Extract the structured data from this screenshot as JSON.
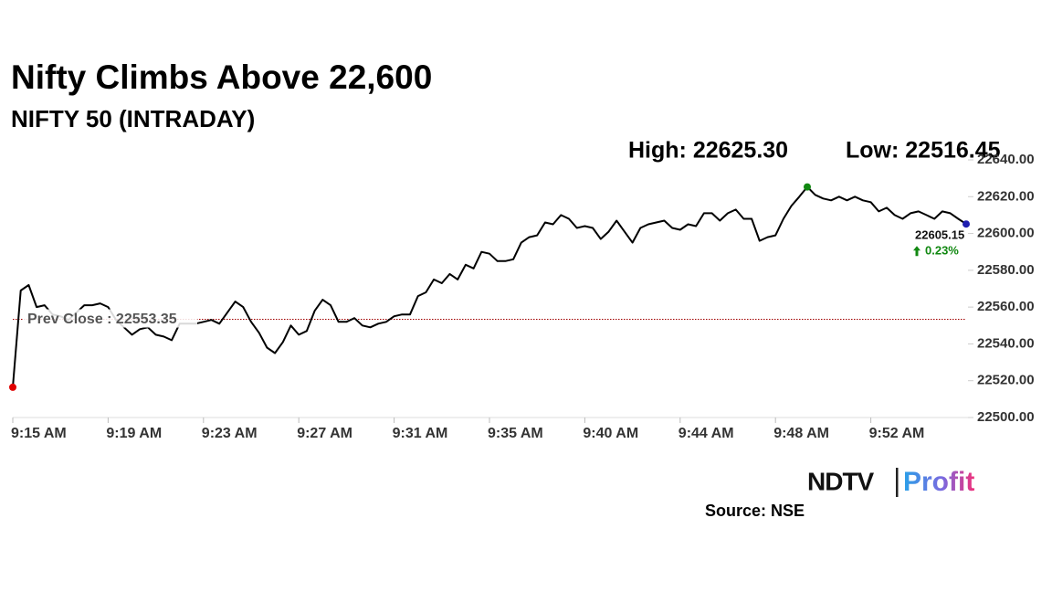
{
  "title": "Nifty Climbs Above 22,600",
  "subtitle": "NIFTY 50 (INTRADAY)",
  "high_label": "High: 22625.30",
  "low_label": "Low: 22516.45",
  "source": "Source: NSE",
  "logo": {
    "left": "NDTV",
    "right": "Profit"
  },
  "chart_data": {
    "type": "line",
    "series": [
      {
        "color": "#000000",
        "values": [
          22516.45,
          22569,
          22572,
          22560,
          22561,
          22556,
          22555,
          22553,
          22557,
          22561,
          22561,
          22562,
          22560,
          22553,
          22549,
          22545,
          22548,
          22549,
          22545,
          22544,
          22542,
          22551,
          22551,
          22551,
          22552,
          22553,
          22551,
          22557,
          22563,
          22560,
          22552,
          22546,
          22538,
          22535,
          22541,
          22550,
          22545,
          22547,
          22558,
          22564,
          22561,
          22552,
          22552,
          22554,
          22550,
          22549,
          22551,
          22552,
          22555,
          22556,
          22556,
          22566,
          22568,
          22575,
          22573,
          22578,
          22575,
          22583,
          22581,
          22590,
          22589,
          22585,
          22585,
          22586,
          22595,
          22598,
          22599,
          22606,
          22605,
          22610,
          22608,
          22603,
          22604,
          22603,
          22597,
          22601,
          22607,
          22601,
          22595,
          22603,
          22605,
          22606,
          22607,
          22603,
          22602,
          22605,
          22604,
          22611,
          22611,
          22607,
          22611,
          22613,
          22608,
          22608,
          22596,
          22598,
          22599,
          22608,
          22615,
          22620,
          22625.3,
          22621,
          22619,
          22618,
          22620,
          22618,
          22620,
          22618,
          22617,
          22612,
          22614,
          22610,
          22608,
          22611,
          22612,
          22610,
          22608,
          22612,
          22611,
          22608,
          22605.15
        ]
      }
    ],
    "xlim": [
      0,
      120
    ],
    "xticks": [
      {
        "value": 0,
        "label": "9:15 AM"
      },
      {
        "value": 12,
        "label": "9:19 AM"
      },
      {
        "value": 24,
        "label": "9:23 AM"
      },
      {
        "value": 36,
        "label": "9:27 AM"
      },
      {
        "value": 48,
        "label": "9:31 AM"
      },
      {
        "value": 60,
        "label": "9:35 AM"
      },
      {
        "value": 72,
        "label": "9:40 AM"
      },
      {
        "value": 84,
        "label": "9:44 AM"
      },
      {
        "value": 96,
        "label": "9:48 AM"
      },
      {
        "value": 108,
        "label": "9:52 AM"
      }
    ],
    "ylim": [
      22500,
      22640
    ],
    "yticks": [
      {
        "value": 22500,
        "label": "22500.00"
      },
      {
        "value": 22520,
        "label": "22520.00"
      },
      {
        "value": 22540,
        "label": "22540.00"
      },
      {
        "value": 22560,
        "label": "22560.00"
      },
      {
        "value": 22580,
        "label": "22580.00"
      },
      {
        "value": 22600,
        "label": "22600.00"
      },
      {
        "value": 22620,
        "label": "22620.00"
      },
      {
        "value": 22640,
        "label": "22640.00"
      }
    ],
    "reference_line": {
      "label": "Prev Close : 22553.35",
      "value": 22553.35,
      "color": "#a00000"
    },
    "change_label": "0.23%",
    "change_color": "#118811",
    "marker_colors": {
      "start": "#e00000",
      "high": "#118811",
      "end": "#2020b0"
    }
  }
}
